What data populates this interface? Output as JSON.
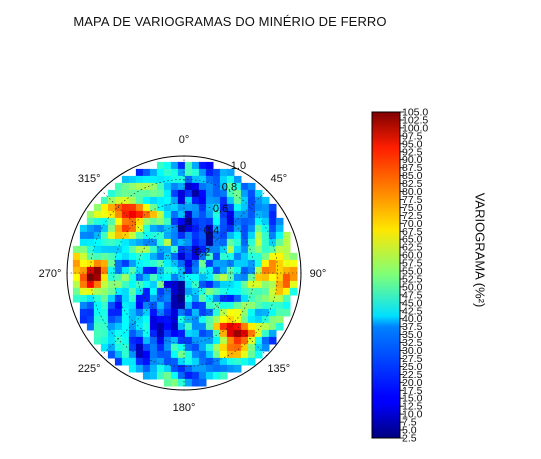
{
  "chart_data": {
    "type": "heatmap",
    "projection": "polar",
    "title": "MAPA DE VARIOGRAMAS DO MINÉRIO DE FERRO",
    "colorbar_label": "VARIOGRAMA (%²)",
    "colorbar_range": [
      2.5,
      105.0
    ],
    "colorbar_ticks": [
      "105.0",
      "102.5",
      "100.0",
      "97.5",
      "95.0",
      "92.5",
      "90.0",
      "87.5",
      "85.0",
      "82.5",
      "80.0",
      "77.5",
      "75.0",
      "72.5",
      "70.0",
      "67.5",
      "65.0",
      "62.5",
      "60.0",
      "57.5",
      "55.0",
      "52.5",
      "50.0",
      "47.5",
      "45.0",
      "42.5",
      "40.0",
      "37.5",
      "35.0",
      "32.5",
      "30.0",
      "27.5",
      "25.0",
      "22.5",
      "20.0",
      "17.5",
      "15.0",
      "12.5",
      "10.0",
      "7.5",
      "5.0",
      "2.5"
    ],
    "radial_ticks": [
      "0.2",
      "0.4",
      "0.6",
      "0.8",
      "1.0"
    ],
    "angular_ticks": [
      {
        "deg": 0,
        "label": "0°"
      },
      {
        "deg": 45,
        "label": "45°"
      },
      {
        "deg": 90,
        "label": "90°"
      },
      {
        "deg": 135,
        "label": "135°"
      },
      {
        "deg": 180,
        "label": "180°"
      },
      {
        "deg": 225,
        "label": "225°"
      },
      {
        "deg": 270,
        "label": "270°"
      },
      {
        "deg": 315,
        "label": "315°"
      }
    ],
    "colormap": "jet",
    "radial_max": 1.0,
    "high_variance_zones": [
      {
        "direction_deg": 90,
        "lag": 0.85,
        "variogram": 95
      },
      {
        "direction_deg": 270,
        "lag": 0.85,
        "variogram": 95
      },
      {
        "direction_deg": 318,
        "lag": 0.72,
        "variogram": 100
      },
      {
        "direction_deg": 138,
        "lag": 0.72,
        "variogram": 100
      }
    ],
    "low_variance_zone": {
      "direction_deg": [
        20,
        200
      ],
      "variogram": 10
    }
  }
}
